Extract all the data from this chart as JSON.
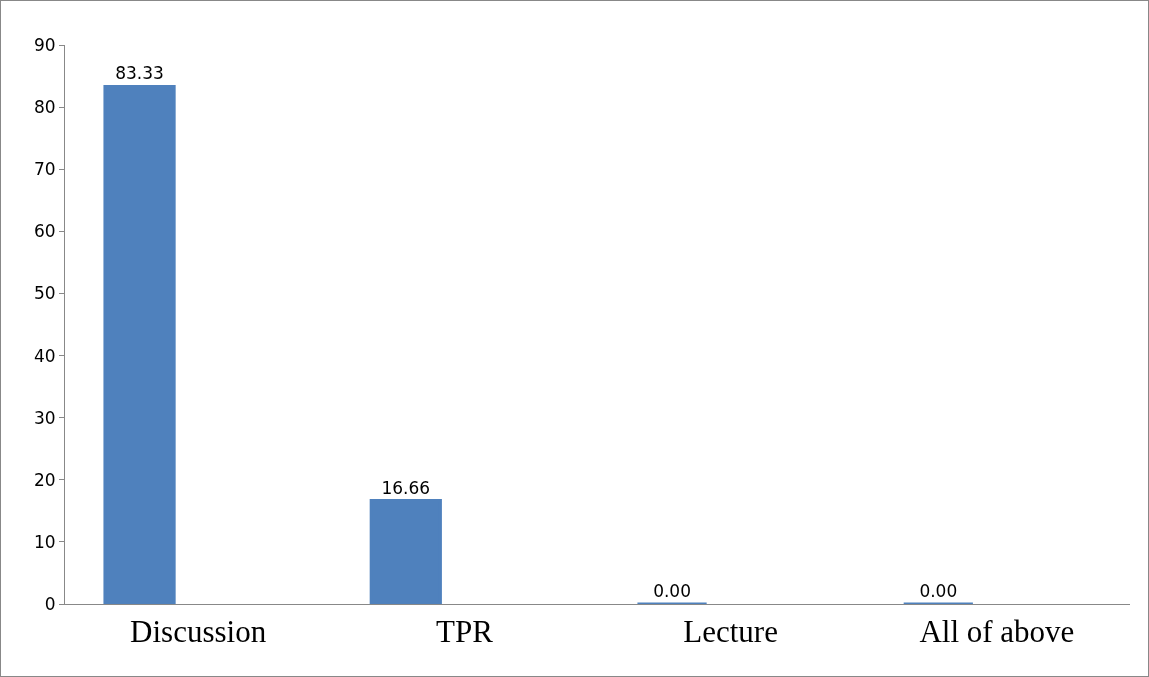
{
  "chart_data": {
    "type": "bar",
    "categories": [
      "Discussion",
      "TPR",
      "Lecture",
      "All of above"
    ],
    "values": [
      83.33,
      16.66,
      0,
      0
    ],
    "value_labels": [
      "83.33",
      "16.66",
      "0.00",
      "0.00"
    ],
    "color": "#4f81bd",
    "ylim": [
      0,
      90
    ],
    "yticks": [
      0,
      10,
      20,
      30,
      40,
      50,
      60,
      70,
      80,
      90
    ]
  }
}
